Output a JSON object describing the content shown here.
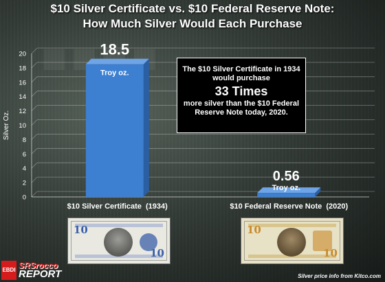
{
  "title_line1": "$10 Silver Certificate vs. $10 Federal Reserve Note:",
  "title_line2": "How Much Silver Would Each Purchase",
  "annotation": {
    "line1": "The $10 Silver Certificate in 1934",
    "line2": "would purchase",
    "line3": "33 Times",
    "line4": "more silver than the $10 Federal",
    "line5": "Reserve Note today, 2020."
  },
  "bills": {
    "silver_number": "10",
    "frn_number": "10"
  },
  "logo": {
    "badge": "EBDI",
    "line1": "SRSrocco",
    "line2": "REPORT"
  },
  "source": "Silver price info from Kitco.com",
  "colors": {
    "bar_fill": "#3d7fd1",
    "bar_dark": "#2a5fa3",
    "frn_accent": "#c98a2a",
    "silver_accent": "#3a5fa8"
  },
  "chart_data": {
    "type": "bar",
    "title": "$10 Silver Certificate vs. $10 Federal Reserve Note: How Much Silver Would Each Purchase",
    "categories": [
      "$10 Silver Certificate  (1934)",
      "$10 Federal Reserve Note  (2020)"
    ],
    "values": [
      18.5,
      0.56
    ],
    "value_labels": [
      "18.5",
      "0.56"
    ],
    "value_units": [
      "Troy oz.",
      "Troy oz."
    ],
    "xlabel": "",
    "ylabel": "Silver Oz.",
    "ylim": [
      0,
      20
    ],
    "yticks": [
      0,
      2,
      4,
      6,
      8,
      10,
      12,
      14,
      16,
      18,
      20
    ],
    "grid": true
  }
}
